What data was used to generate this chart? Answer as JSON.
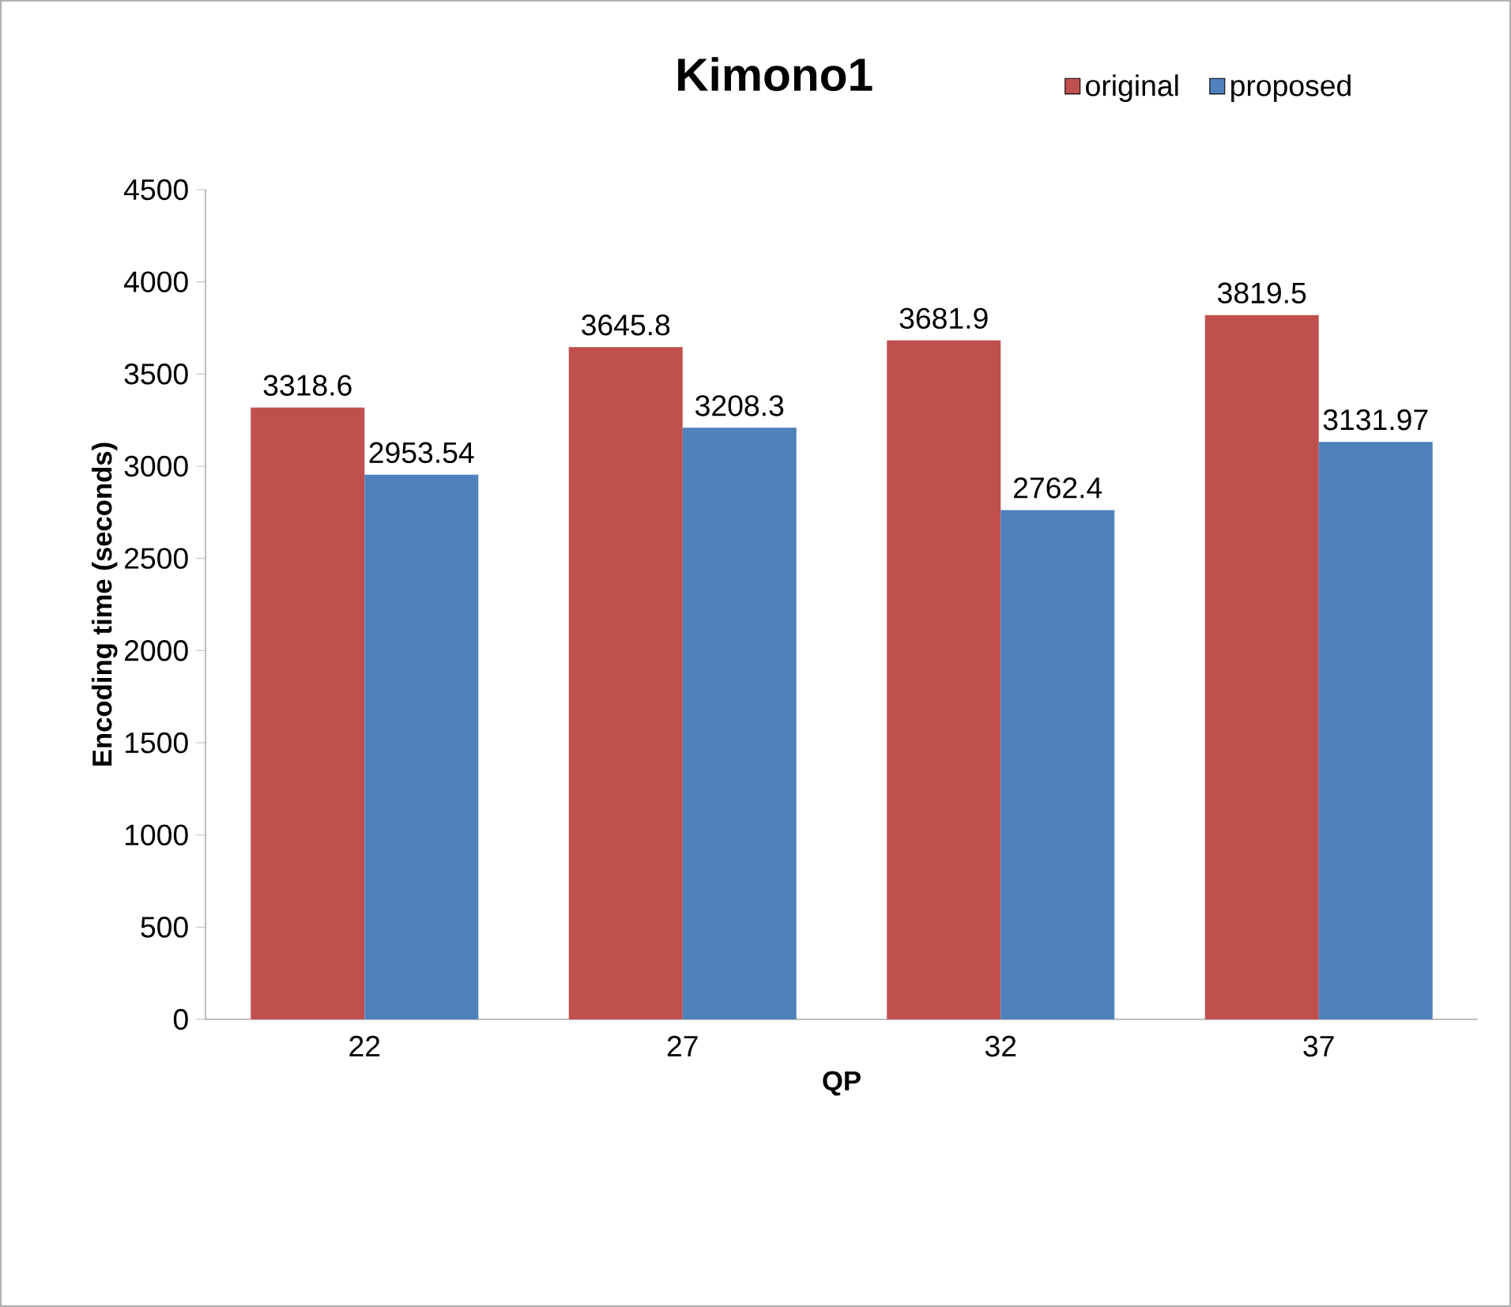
{
  "chart_data": {
    "type": "bar",
    "title": "Kimono1",
    "xlabel": "QP",
    "ylabel": "Encoding time (seconds)",
    "categories": [
      "22",
      "27",
      "32",
      "37"
    ],
    "series": [
      {
        "name": "original",
        "color": "#c0504d",
        "values": [
          3318.6,
          3645.8,
          3681.9,
          3819.5
        ]
      },
      {
        "name": "proposed",
        "color": "#4f81bd",
        "values": [
          2953.54,
          3208.3,
          2762.4,
          3131.97
        ]
      }
    ],
    "ylim": [
      0,
      4500
    ],
    "yticks": [
      0,
      500,
      1000,
      1500,
      2000,
      2500,
      3000,
      3500,
      4000,
      4500
    ],
    "grid": false,
    "legend": "top right",
    "data_labels": true
  }
}
